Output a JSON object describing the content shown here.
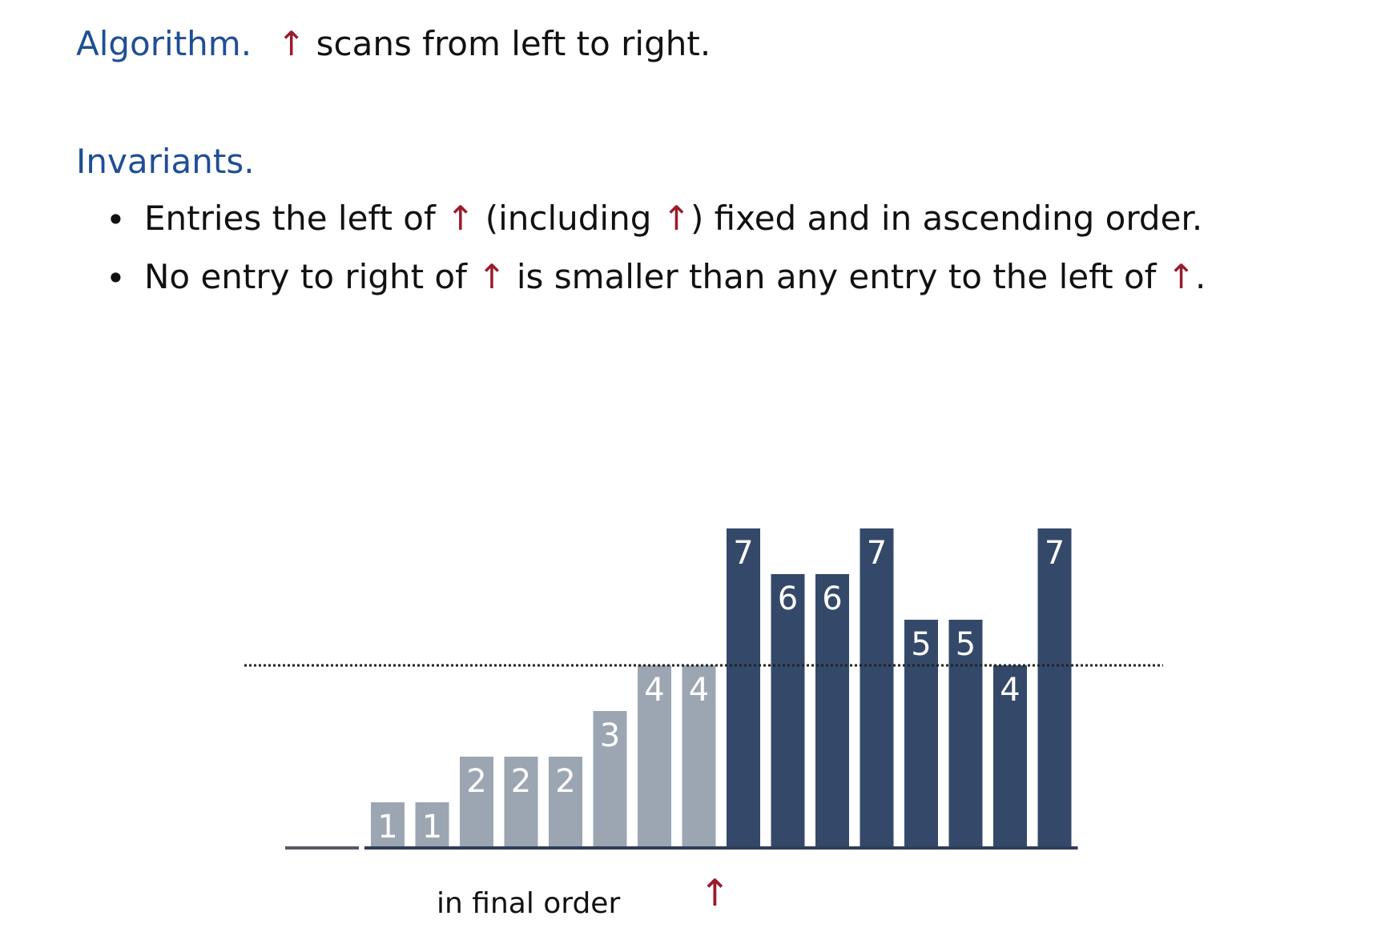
{
  "heading": {
    "algorithm_label": "Algorithm.",
    "pointer_symbol": "↑",
    "algorithm_text": "scans from left to right."
  },
  "invariants": {
    "label": "Invariants.",
    "bullet_symbol": "•",
    "items": [
      {
        "part1": "Entries the left of",
        "part2": "(including",
        "part3": ") fixed and in ascending order."
      },
      {
        "part1": "No entry to right of",
        "part2": "is smaller than any entry to the left of",
        "part3": "."
      }
    ]
  },
  "colors": {
    "fixed_bar": "#9ca6b2",
    "unsorted_bar": "#34496a",
    "pointer": "#9a1b2a",
    "label": "#1f4e96"
  },
  "chart_data": {
    "type": "bar",
    "values": [
      1,
      1,
      2,
      2,
      2,
      3,
      4,
      4,
      7,
      6,
      6,
      7,
      5,
      5,
      4,
      7
    ],
    "labels": [
      "1",
      "1",
      "2",
      "2",
      "2",
      "3",
      "4",
      "4",
      "7",
      "6",
      "6",
      "7",
      "5",
      "5",
      "4",
      "7"
    ],
    "fixed_count": 8,
    "threshold": 4,
    "caption": "in final order",
    "pointer_symbol": "↑"
  }
}
